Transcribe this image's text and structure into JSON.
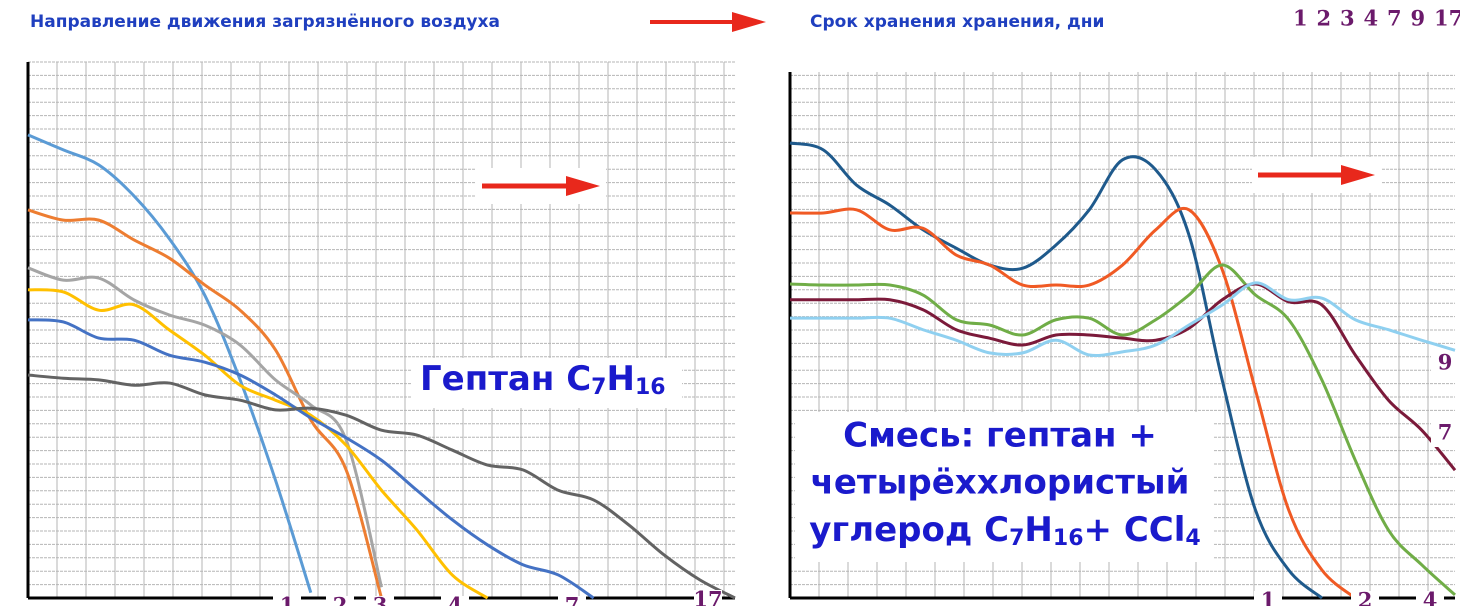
{
  "header": {
    "direction": "Направление движения загрязнённого воздуха",
    "storage": "Срок хранения хранения, дни",
    "days": [
      "1",
      "2",
      "3",
      "4",
      "7",
      "9",
      "17"
    ]
  },
  "chart_data": [
    {
      "type": "line",
      "title_parts": [
        "Гептан  C",
        "7",
        "H",
        "16"
      ],
      "grid": true,
      "xlim": [
        0,
        100
      ],
      "ylim": [
        0,
        100
      ],
      "x": [
        0,
        5,
        10,
        15,
        20,
        25,
        30,
        35,
        40,
        45,
        50,
        55,
        60,
        65,
        70,
        75,
        80,
        85,
        90,
        95,
        100
      ],
      "series": [
        {
          "name": "1",
          "color": "#5b9bd5",
          "values": [
            86.4,
            83.6,
            80.8,
            75,
            67,
            56.5,
            40.7,
            22,
            1,
            null,
            null,
            null,
            null,
            null,
            null,
            null,
            null,
            null,
            null,
            null,
            null
          ]
        },
        {
          "name": "2",
          "color": "#ed7d31",
          "values": [
            72.4,
            70.5,
            70.5,
            66.8,
            63.4,
            58.4,
            53.7,
            46.3,
            33.2,
            23.9,
            0,
            null,
            null,
            null,
            null,
            null,
            null,
            null,
            null,
            null,
            null
          ]
        },
        {
          "name": "3",
          "color": "#a5a5a5",
          "values": [
            61.6,
            59.3,
            59.7,
            55.6,
            52.8,
            50.9,
            47.2,
            40.7,
            36,
            29.5,
            2,
            null,
            null,
            null,
            null,
            null,
            null,
            null,
            null,
            null,
            null
          ]
        },
        {
          "name": "4",
          "color": "#ffc000",
          "values": [
            57.5,
            57.1,
            53.7,
            54.7,
            50,
            45.3,
            39.7,
            36.9,
            34.1,
            28.5,
            20.1,
            12.7,
            4.3,
            0,
            null,
            null,
            null,
            null,
            null,
            null,
            null
          ]
        },
        {
          "name": "7",
          "color": "#4472c4",
          "values": [
            51.9,
            51.5,
            48.5,
            48.1,
            45.3,
            44,
            41.6,
            37.9,
            33.6,
            29.9,
            25.7,
            20.1,
            14.6,
            9.9,
            6.2,
            4.3,
            0,
            null,
            null,
            null,
            null
          ]
        },
        {
          "name": "17",
          "color": "#636363",
          "values": [
            41.6,
            41,
            40.7,
            39.7,
            40.1,
            37.9,
            36.9,
            35.1,
            35.4,
            34.1,
            31.3,
            30.4,
            27.6,
            24.8,
            23.9,
            20.1,
            18.3,
            13.6,
            8,
            3.4,
            0
          ]
        }
      ]
    },
    {
      "type": "line",
      "title_lines": [
        "Смесь: гептан +",
        "четырёххлористый"
      ],
      "title_last_parts": [
        "углерод C",
        "7",
        "H",
        "16",
        "+ CCl",
        "4"
      ],
      "grid": true,
      "xlim": [
        0,
        100
      ],
      "ylim": [
        0,
        100
      ],
      "x": [
        0,
        5,
        10,
        15,
        20,
        25,
        30,
        35,
        40,
        45,
        50,
        55,
        60,
        65,
        70,
        75,
        80,
        85,
        90,
        95,
        100
      ],
      "series": [
        {
          "name": "1",
          "color": "#1f5a8c",
          "values": [
            86.5,
            85.2,
            78.5,
            74.7,
            70,
            66.5,
            63.3,
            62.7,
            67.1,
            73.8,
            83.3,
            81.4,
            69,
            41.4,
            16.7,
            5.3,
            0,
            null,
            null,
            null,
            null
          ]
        },
        {
          "name": "2",
          "color": "#f05a24",
          "values": [
            73.2,
            73.2,
            73.8,
            70,
            70.3,
            65.2,
            63.3,
            59.5,
            59.5,
            59.5,
            63.3,
            70,
            73.8,
            62.4,
            39.5,
            16.7,
            5.3,
            0,
            null,
            null,
            null
          ]
        },
        {
          "name": "4",
          "color": "#70ad47",
          "values": [
            59.7,
            59.5,
            59.5,
            59.5,
            57.6,
            52.9,
            51.9,
            50,
            52.9,
            53.2,
            50,
            52.9,
            57.6,
            63.3,
            57.6,
            52.9,
            41.4,
            26.2,
            12.9,
            6.3,
            0.6
          ]
        },
        {
          "name": "7",
          "color": "#7b1a3a",
          "values": [
            56.7,
            56.7,
            56.7,
            56.7,
            54.8,
            51,
            49.4,
            48.1,
            50,
            50,
            49.4,
            49,
            51.3,
            56.7,
            59.7,
            56.3,
            55.7,
            46.2,
            37.6,
            31.9,
            24.3
          ]
        },
        {
          "name": "9",
          "color": "#8fd0f0",
          "values": [
            53.2,
            53.2,
            53.2,
            53.2,
            51,
            49,
            46.6,
            46.6,
            49,
            46.2,
            46.8,
            48.1,
            51.9,
            55.7,
            59.9,
            56.7,
            57,
            52.9,
            51,
            49,
            47.1
          ]
        }
      ]
    }
  ]
}
